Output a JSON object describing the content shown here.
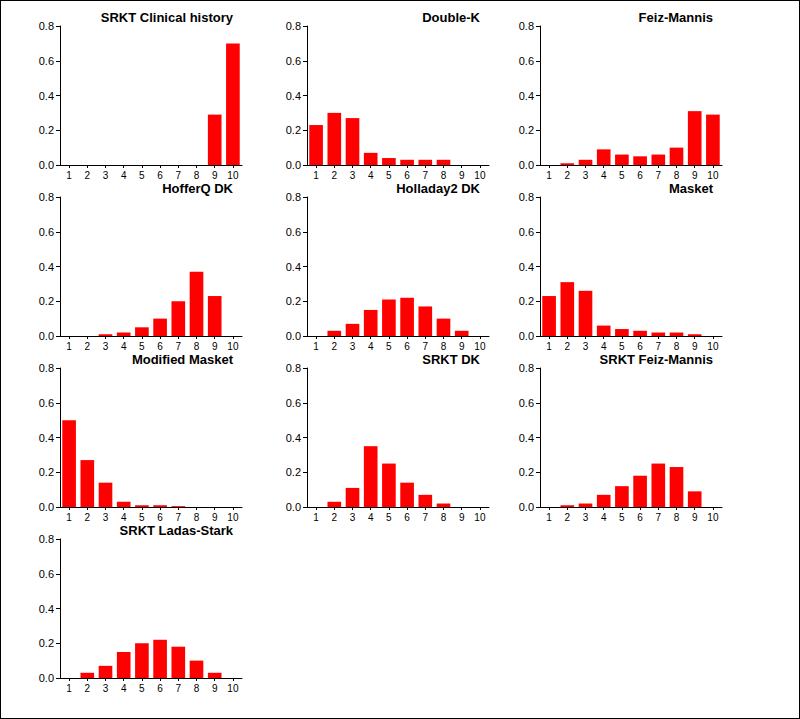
{
  "chart_data": [
    {
      "type": "bar",
      "title": "SRKT Clinical history",
      "categories": [
        "1",
        "2",
        "3",
        "4",
        "5",
        "6",
        "7",
        "8",
        "9",
        "10"
      ],
      "values": [
        0,
        0,
        0,
        0,
        0,
        0,
        0,
        0,
        0.29,
        0.7
      ],
      "color": "#ff0000",
      "ylim": [
        0,
        0.8
      ],
      "yticks": [
        {
          "value": 0,
          "label": "0.0"
        },
        0.2,
        0.4,
        0.6,
        0.8
      ],
      "grid": false
    },
    {
      "type": "bar",
      "title": "Double-K",
      "categories": [
        "1",
        "2",
        "3",
        "4",
        "5",
        "6",
        "7",
        "8",
        "9",
        "10"
      ],
      "values": [
        0.23,
        0.3,
        0.27,
        0.07,
        0.04,
        0.03,
        0.03,
        0.03,
        0,
        0
      ],
      "color": "#ff0000",
      "ylim": [
        0,
        0.8
      ],
      "yticks": [
        {
          "value": 0,
          "label": "0.0"
        },
        0.2,
        0.4,
        0.6,
        0.8
      ],
      "grid": false
    },
    {
      "type": "bar",
      "title": "Feiz-Mannis",
      "categories": [
        "1",
        "2",
        "3",
        "4",
        "5",
        "6",
        "7",
        "8",
        "9",
        "10"
      ],
      "values": [
        0,
        0.01,
        0.03,
        0.09,
        0.06,
        0.05,
        0.06,
        0.1,
        0.31,
        0.29
      ],
      "color": "#ff0000",
      "ylim": [
        0,
        0.8
      ],
      "yticks": [
        {
          "value": 0,
          "label": "0.0"
        },
        0.2,
        0.4,
        0.6,
        0.8
      ],
      "grid": false
    },
    {
      "type": "bar",
      "title": "HofferQ DK",
      "categories": [
        "1",
        "2",
        "3",
        "4",
        "5",
        "6",
        "7",
        "8",
        "9",
        "10"
      ],
      "values": [
        0,
        0,
        0.01,
        0.02,
        0.05,
        0.1,
        0.2,
        0.37,
        0.23,
        0
      ],
      "color": "#ff0000",
      "ylim": [
        0,
        0.8
      ],
      "yticks": [
        {
          "value": 0,
          "label": "0.0"
        },
        0.2,
        0.4,
        0.6,
        0.8
      ],
      "grid": false
    },
    {
      "type": "bar",
      "title": "Holladay2 DK",
      "categories": [
        "1",
        "2",
        "3",
        "4",
        "5",
        "6",
        "7",
        "8",
        "9",
        "10"
      ],
      "values": [
        0,
        0.03,
        0.07,
        0.15,
        0.21,
        0.22,
        0.17,
        0.1,
        0.03,
        0
      ],
      "color": "#ff0000",
      "ylim": [
        0,
        0.8
      ],
      "yticks": [
        {
          "value": 0,
          "label": "0.0"
        },
        0.2,
        0.4,
        0.6,
        0.8
      ],
      "grid": false
    },
    {
      "type": "bar",
      "title": "Masket",
      "categories": [
        "1",
        "2",
        "3",
        "4",
        "5",
        "6",
        "7",
        "8",
        "9",
        "10"
      ],
      "values": [
        0.23,
        0.31,
        0.26,
        0.06,
        0.04,
        0.03,
        0.02,
        0.02,
        0.01,
        0
      ],
      "color": "#ff0000",
      "ylim": [
        0,
        0.8
      ],
      "yticks": [
        {
          "value": 0,
          "label": "0.0"
        },
        0.2,
        0.4,
        0.6,
        0.8
      ],
      "grid": false
    },
    {
      "type": "bar",
      "title": "Modified Masket",
      "categories": [
        "1",
        "2",
        "3",
        "4",
        "5",
        "6",
        "7",
        "8",
        "9",
        "10"
      ],
      "values": [
        0.5,
        0.27,
        0.14,
        0.03,
        0.01,
        0.01,
        0.005,
        0,
        0,
        0
      ],
      "color": "#ff0000",
      "ylim": [
        0,
        0.8
      ],
      "yticks": [
        {
          "value": 0,
          "label": "0.0"
        },
        0.2,
        0.4,
        0.6,
        0.8
      ],
      "grid": false
    },
    {
      "type": "bar",
      "title": "SRKT DK",
      "categories": [
        "1",
        "2",
        "3",
        "4",
        "5",
        "6",
        "7",
        "8",
        "9",
        "10"
      ],
      "values": [
        0,
        0.03,
        0.11,
        0.35,
        0.25,
        0.14,
        0.07,
        0.02,
        0,
        0
      ],
      "color": "#ff0000",
      "ylim": [
        0,
        0.8
      ],
      "yticks": [
        {
          "value": 0,
          "label": "0.0"
        },
        0.2,
        0.4,
        0.6,
        0.8
      ],
      "grid": false
    },
    {
      "type": "bar",
      "title": "SRKT Feiz-Mannis",
      "categories": [
        "1",
        "2",
        "3",
        "4",
        "5",
        "6",
        "7",
        "8",
        "9",
        "10"
      ],
      "values": [
        0,
        0.01,
        0.02,
        0.07,
        0.12,
        0.18,
        0.25,
        0.23,
        0.09,
        0
      ],
      "color": "#ff0000",
      "ylim": [
        0,
        0.8
      ],
      "yticks": [
        {
          "value": 0,
          "label": "0.0"
        },
        0.2,
        0.4,
        0.6,
        0.8
      ],
      "grid": false
    },
    {
      "type": "bar",
      "title": "SRKT Ladas-Stark",
      "categories": [
        "1",
        "2",
        "3",
        "4",
        "5",
        "6",
        "7",
        "8",
        "9",
        "10"
      ],
      "values": [
        0,
        0.03,
        0.07,
        0.15,
        0.2,
        0.22,
        0.18,
        0.1,
        0.03,
        0
      ],
      "color": "#ff0000",
      "ylim": [
        0,
        0.8
      ],
      "yticks": [
        {
          "value": 0,
          "label": "0.0"
        },
        0.2,
        0.4,
        0.6,
        0.8
      ],
      "grid": false
    }
  ]
}
